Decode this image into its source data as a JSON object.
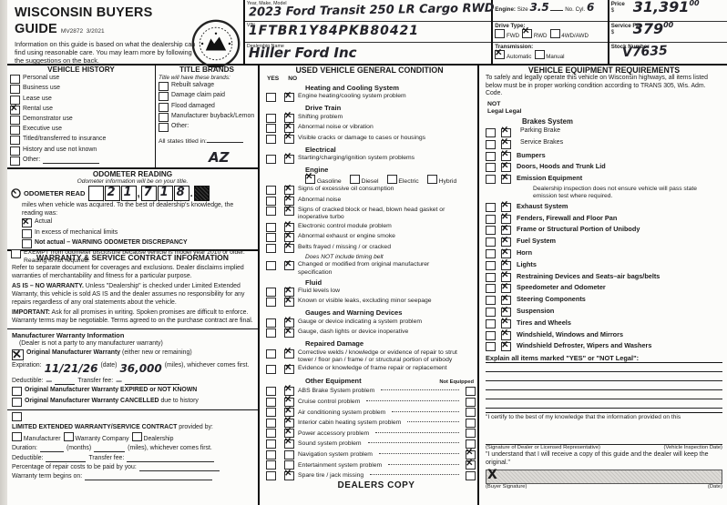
{
  "header": {
    "title": "WISCONSIN BUYERS GUIDE",
    "form_number": "MV2872",
    "revision": "3/2021",
    "intro": "Information on this guide is based on what the dealership can find using reasonable care. You may learn more by following the suggestions on the back.",
    "seal": "Wisconsin Department of Transportation seal",
    "fields": {
      "ymm_label": "Year, Make, Model",
      "ymm_value": "2023 Ford Transit 250 LR Cargo RWD",
      "vin_label": "VIN",
      "vin_value": "1FTBR1Y84PKB80421",
      "dealer_label": "Dealership Name",
      "dealer_value": "Hiller Ford Inc"
    },
    "engine": {
      "label": "Engine:",
      "size_label": "Size",
      "size_value": "3.5",
      "cyl_label": "No. Cyl.",
      "cyl_value": "6"
    },
    "drive": {
      "label": "Drive Type:",
      "options": [
        {
          "label": "FWD",
          "checked": false
        },
        {
          "label": "RWD",
          "checked": true
        },
        {
          "label": "4WD/AWD",
          "checked": false
        }
      ]
    },
    "transmission": {
      "label": "Transmission:",
      "options": [
        {
          "label": "Automatic",
          "checked": true
        },
        {
          "label": "Manual",
          "checked": false
        }
      ]
    },
    "price": {
      "label": "Price",
      "currency": "$",
      "value": "31,391",
      "cents": "00"
    },
    "service_fee": {
      "label": "Service Fee",
      "currency": "$",
      "value": "379",
      "cents": "00"
    },
    "stock": {
      "label": "Stock Number",
      "value": "V7635"
    }
  },
  "vehicle_history": {
    "title": "VEHICLE HISTORY",
    "items": [
      {
        "label": "Personal use",
        "checked": false
      },
      {
        "label": "Business use",
        "checked": false
      },
      {
        "label": "Lease use",
        "checked": false
      },
      {
        "label": "Rental use",
        "checked": true
      },
      {
        "label": "Demonstrator use",
        "checked": false
      },
      {
        "label": "Executive use",
        "checked": false
      },
      {
        "label": "Titled/transferred to insurance",
        "checked": false
      },
      {
        "label": "History and use not known",
        "checked": false
      },
      {
        "label": "Other:",
        "checked": false
      }
    ]
  },
  "title_brands": {
    "title": "TITLE BRANDS",
    "subtitle": "Title will have these brands:",
    "items": [
      {
        "label": "Rebuilt salvage",
        "checked": false
      },
      {
        "label": "Damage claim paid",
        "checked": false
      },
      {
        "label": "Flood damaged",
        "checked": false
      },
      {
        "label": "Manufacturer buyback/Lemon",
        "checked": false
      },
      {
        "label": "Other:",
        "checked": false
      }
    ],
    "titled_in_label": "All states titled in:",
    "titled_in_value": "AZ"
  },
  "odometer": {
    "title": "ODOMETER READING",
    "subtitle": "Odometer information will be on your title.",
    "read_label": "ODOMETER READ",
    "digits": [
      "",
      "2",
      "1",
      "7",
      "1",
      "8"
    ],
    "comma": ",",
    "period": ".",
    "desc": "miles when vehicle was acquired. To the best of dealership's knowledge, the reading was:",
    "options": [
      {
        "label": "Actual",
        "checked": true
      },
      {
        "label": "In excess of mechanical limits",
        "checked": false
      },
      {
        "label": "Not actual – WARNING ODOMETER DISCREPANCY",
        "checked": false,
        "bold": true
      }
    ],
    "exempt": {
      "label": "EXEMPT from odometer disclosure because vehicle is model year 2010 or older. Reading is not required.",
      "checked": false
    }
  },
  "warranty": {
    "title": "WARRANTY & SERVICE CONTRACT INFORMATION",
    "para1": "Refer to separate document for coverages and exclusions. Dealer disclaims implied warranties of merchantability and fitness for a particular purpose.",
    "para2_bold": "AS IS – NO WARRANTY.",
    "para2": "Unless \"Dealership\" is checked under Limited Extended Warranty, this vehicle is sold AS IS and the dealer assumes no responsibility for any repairs regardless of any oral statements about the vehicle.",
    "para3_bold": "IMPORTANT:",
    "para3": "Ask for all promises in writing. Spoken promises are difficult to enforce. Warranty terms may be negotiable. Terms agreed to on the purchase contract are final.",
    "mw_title": "Manufacturer Warranty Information",
    "mw_sub": "(Dealer is not a party to any manufacturer warranty)",
    "omw": {
      "label": "Original Manufacturer Warranty",
      "label2": "(either new or remaining)",
      "checked": true
    },
    "expiration_label": "Expiration:",
    "expiration_value": "11/21/26",
    "date_label": "(date)",
    "miles_value": "36,000",
    "miles_label": "(miles), whichever comes first.",
    "deductible_label": "Deductible:",
    "deductible_value": "—",
    "transfer_label": "Transfer fee:",
    "transfer_value": "—",
    "expired": {
      "label": "Original Manufacturer Warranty EXPIRED or NOT KNOWN",
      "checked": false
    },
    "cancelled_bold": "Original Manufacturer Warranty CANCELLED",
    "cancelled_rest": "due to history",
    "lew_bold": "LIMITED EXTENDED WARRANTY/SERVICE CONTRACT",
    "lew_rest": "provided by:",
    "lew_options": [
      {
        "label": "Manufacturer",
        "checked": false
      },
      {
        "label": "Warranty Company",
        "checked": false
      },
      {
        "label": "Dealership",
        "checked": false
      }
    ],
    "duration_label": "Duration:",
    "months_label": "(months)",
    "miles2_label": "(miles), whichever comes first.",
    "deductible2_label": "Deductible:",
    "transfer2_label": "Transfer fee:",
    "pct_label": "Percentage of repair costs to be paid by you:",
    "begins_label": "Warranty term begins on:"
  },
  "condition": {
    "title": "USED VEHICLE GENERAL CONDITION",
    "yes_header": "YES",
    "no_header": "NO",
    "groups": [
      {
        "heading": "Heating and Cooling System",
        "items": [
          {
            "label": "Engine heating/cooling system problem",
            "yes": false,
            "no": true
          }
        ]
      },
      {
        "heading": "Drive Train",
        "items": [
          {
            "label": "Shifting problem",
            "yes": false,
            "no": true
          },
          {
            "label": "Abnormal noise or vibration",
            "yes": false,
            "no": true
          },
          {
            "label": "Visible cracks or damage to cases or housings",
            "yes": false,
            "no": true
          }
        ]
      },
      {
        "heading": "Electrical",
        "items": [
          {
            "label": "Starting/charging/ignition system problems",
            "yes": false,
            "no": true
          }
        ]
      },
      {
        "heading": "Engine",
        "fuel": [
          {
            "label": "Gasoline",
            "checked": true
          },
          {
            "label": "Diesel",
            "checked": false
          },
          {
            "label": "Electric",
            "checked": false
          },
          {
            "label": "Hybrid",
            "checked": false
          }
        ],
        "items": [
          {
            "label": "Signs of excessive oil consumption",
            "yes": false,
            "no": true
          },
          {
            "label": "Abnormal noise",
            "yes": false,
            "no": true
          },
          {
            "label": "Signs of cracked block or head, blown head gasket or inoperative turbo",
            "yes": false,
            "no": true
          },
          {
            "label": "Electronic control module problem",
            "yes": false,
            "no": true
          },
          {
            "label": "Abnormal exhaust or engine smoke",
            "yes": false,
            "no": true
          },
          {
            "label": "Belts frayed / missing / or cracked",
            "yes": false,
            "no": true,
            "note": "Does NOT include timing belt"
          },
          {
            "label": "Changed or modified from original manufacturer specification",
            "yes": false,
            "no": true
          }
        ]
      },
      {
        "heading": "Fluid",
        "items": [
          {
            "label": "Fluid levels low",
            "yes": false,
            "no": true
          },
          {
            "label": "Known or visible leaks, excluding minor seepage",
            "yes": false,
            "no": true
          }
        ]
      },
      {
        "heading": "Gauges and Warning Devices",
        "items": [
          {
            "label": "Gauge or device indicating a system problem",
            "yes": false,
            "no": true
          },
          {
            "label": "Gauge, dash lights or device inoperative",
            "yes": false,
            "no": true
          }
        ]
      },
      {
        "heading": "Repaired Damage",
        "items": [
          {
            "label": "Corrective welds / knowledge or evidence of repair to strut tower / floor pan / frame / or structural portion of unibody",
            "yes": false,
            "no": true
          },
          {
            "label": "Evidence or knowledge of frame repair or replacement",
            "yes": false,
            "no": true
          }
        ]
      }
    ],
    "other": {
      "heading": "Other Equipment",
      "ne_header": "Not Equipped",
      "items": [
        {
          "label": "ABS Brake System problem",
          "yes": false,
          "no": true,
          "ne": false
        },
        {
          "label": "Cruise control problem",
          "yes": false,
          "no": true,
          "ne": false
        },
        {
          "label": "Air conditioning system problem",
          "yes": false,
          "no": true,
          "ne": false
        },
        {
          "label": "Interior cabin heating system problem",
          "yes": false,
          "no": true,
          "ne": false
        },
        {
          "label": "Power accessory problem",
          "yes": false,
          "no": true,
          "ne": false
        },
        {
          "label": "Sound system problem",
          "yes": false,
          "no": true,
          "ne": false
        },
        {
          "label": "Navigation system problem",
          "yes": false,
          "no": false,
          "ne": true
        },
        {
          "label": "Entertainment system problem",
          "yes": false,
          "no": false,
          "ne": true
        },
        {
          "label": "Spare tire / jack missing",
          "yes": false,
          "no": true,
          "ne": false
        }
      ]
    }
  },
  "equipment": {
    "title": "VEHICLE EQUIPMENT REQUIREMENTS",
    "intro": "To safely and legally operate this vehicle on Wisconsin highways, all items listed below must be in proper working condition according to TRANS 305, Wis. Adm. Code.",
    "not_head": "NOT",
    "legal_head1": "Legal",
    "legal_head2": "Legal",
    "rows": [
      {
        "label": "Brakes System",
        "heading": true
      },
      {
        "label": "Parking Brake",
        "legal": true,
        "not_legal": false,
        "sub": true
      },
      {
        "label": "Service Brakes",
        "legal": true,
        "not_legal": false,
        "sub": true
      },
      {
        "label": "Bumpers",
        "legal": true,
        "not_legal": false
      },
      {
        "label": "Doors, Hoods and Trunk Lid",
        "legal": true,
        "not_legal": false
      },
      {
        "label": "Emission Equipment",
        "legal": true,
        "not_legal": false,
        "note": "Dealership inspection does not ensure vehicle will pass state emission test where required."
      },
      {
        "label": "Exhaust System",
        "legal": true,
        "not_legal": false
      },
      {
        "label": "Fenders, Firewall and Floor Pan",
        "legal": true,
        "not_legal": false
      },
      {
        "label": "Frame or Structural Portion of Unibody",
        "legal": true,
        "not_legal": false
      },
      {
        "label": "Fuel System",
        "legal": true,
        "not_legal": false
      },
      {
        "label": "Horn",
        "legal": true,
        "not_legal": false
      },
      {
        "label": "Lights",
        "legal": true,
        "not_legal": false
      },
      {
        "label": "Restraining Devices and Seats–air bags/belts",
        "legal": true,
        "not_legal": false
      },
      {
        "label": "Speedometer and Odometer",
        "legal": true,
        "not_legal": false
      },
      {
        "label": "Steering Components",
        "legal": true,
        "not_legal": false
      },
      {
        "label": "Suspension",
        "legal": true,
        "not_legal": false
      },
      {
        "label": "Tires and Wheels",
        "legal": true,
        "not_legal": false
      },
      {
        "label": "Windshield, Windows and Mirrors",
        "legal": true,
        "not_legal": false
      },
      {
        "label": "Windshield Defroster, Wipers and Washers",
        "legal": true,
        "not_legal": false
      }
    ],
    "explain_label": "Explain all items marked \"YES\" or \"NOT Legal\":",
    "certify": "\"I certify to the best of my knowledge that the information provided on this",
    "dealer_sig_label": "(Signature of Dealer or Licensed Representative)",
    "inspection_date_label": "(Vehicle Inspection Date)",
    "ack": "\"I understand that I will receive a copy of this guide and the dealer will keep the original.\"",
    "buyer_x": "X",
    "buyer_sig_label": "(Buyer Signature)",
    "date_label": "(Date)"
  },
  "footer": {
    "copy_label": "DEALERS COPY"
  }
}
